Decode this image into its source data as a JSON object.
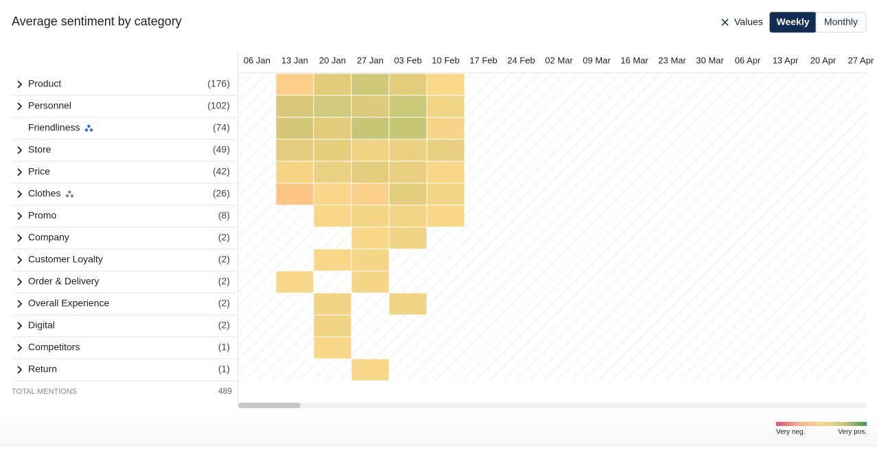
{
  "header": {
    "title": "Average sentiment by category",
    "values_toggle": "Values",
    "views": [
      "Weekly",
      "Monthly"
    ],
    "active_view": 0
  },
  "columns": [
    "06 Jan",
    "13 Jan",
    "20 Jan",
    "27 Jan",
    "03 Feb",
    "10 Feb",
    "17 Feb",
    "24 Feb",
    "02 Mar",
    "09 Mar",
    "16 Mar",
    "23 Mar",
    "30 Mar",
    "06 Apr",
    "13 Apr",
    "20 Apr",
    "27 Apr"
  ],
  "rows": [
    {
      "label": "Product",
      "count": "(176)",
      "expandable": true,
      "cells": [
        null,
        "#fbcf8a",
        "#e2cc78",
        "#cfc97a",
        "#e3cd7a",
        "#f9d888"
      ]
    },
    {
      "label": "Personnel",
      "count": "(102)",
      "expandable": true,
      "cells": [
        null,
        "#d8c878",
        "#cfca7c",
        "#dccb7a",
        "#c9c977",
        "#f2d584"
      ]
    },
    {
      "label": "Friendliness",
      "count": "(74)",
      "expandable": false,
      "icon_color": "#2f6fdb",
      "cells": [
        null,
        "#d4c878",
        "#e2cc7c",
        "#c6c674",
        "#c6c674",
        "#f6d588"
      ]
    },
    {
      "label": "Store",
      "count": "(49)",
      "expandable": true,
      "cells": [
        null,
        "#e3cc7c",
        "#e6cd7c",
        "#f1d283",
        "#ead080",
        "#e8d080"
      ]
    },
    {
      "label": "Price",
      "count": "(42)",
      "expandable": true,
      "cells": [
        null,
        "#f5d584",
        "#ead181",
        "#e3cd7c",
        "#e8cf80",
        "#f9d688"
      ]
    },
    {
      "label": "Clothes",
      "count": "(26)",
      "expandable": true,
      "icon_color": "#888888",
      "cells": [
        null,
        "#fbc384",
        "#f9d689",
        "#fad08a",
        "#e1cd7b",
        "#f3d585"
      ]
    },
    {
      "label": "Promo",
      "count": "(8)",
      "expandable": true,
      "cells": [
        null,
        null,
        "#f8d888",
        "#f3d585",
        "#f1d484",
        "#f8d888"
      ]
    },
    {
      "label": "Company",
      "count": "(2)",
      "expandable": true,
      "cells": [
        null,
        null,
        null,
        "#f8d888",
        "#f0d383"
      ]
    },
    {
      "label": "Customer Loyalty",
      "count": "(2)",
      "expandable": true,
      "cells": [
        null,
        null,
        "#f8d888",
        "#f5d687"
      ]
    },
    {
      "label": "Order & Delivery",
      "count": "(2)",
      "expandable": true,
      "cells": [
        null,
        "#f8d888",
        null,
        "#f5d687"
      ]
    },
    {
      "label": "Overall Experience",
      "count": "(2)",
      "expandable": true,
      "cells": [
        null,
        null,
        "#f1d384",
        null,
        "#f1d384"
      ]
    },
    {
      "label": "Digital",
      "count": "(2)",
      "expandable": true,
      "cells": [
        null,
        null,
        "#f1d384"
      ]
    },
    {
      "label": "Competitors",
      "count": "(1)",
      "expandable": true,
      "cells": [
        null,
        null,
        "#f8d888"
      ]
    },
    {
      "label": "Return",
      "count": "(1)",
      "expandable": true,
      "cells": [
        null,
        null,
        null,
        "#f8d888"
      ]
    }
  ],
  "total": {
    "label": "TOTAL MENTIONS",
    "value": 489
  },
  "legend": {
    "low": "Very neg.",
    "high": "Very pos.",
    "colors": [
      "#e8506a",
      "#f5b08a",
      "#f8d888",
      "#c9c977",
      "#3f9a4f"
    ]
  }
}
